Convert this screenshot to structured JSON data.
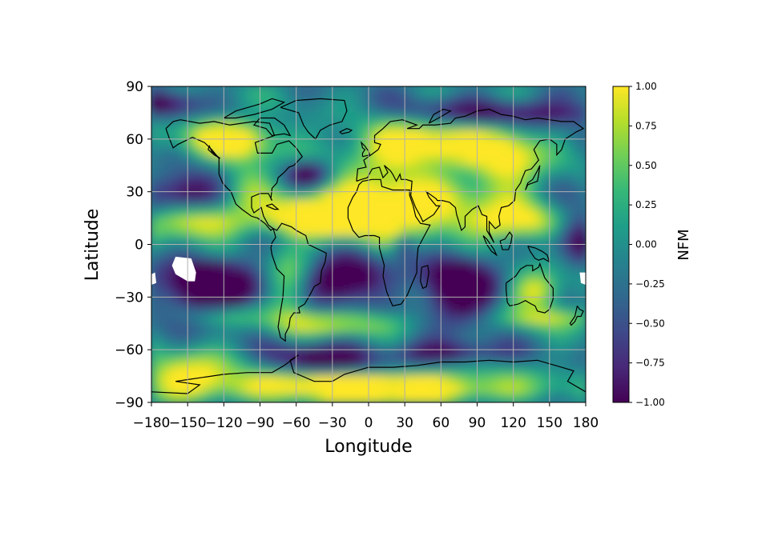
{
  "map": {
    "xlabel": "Longitude",
    "ylabel": "Latitude",
    "xlim": [
      -180,
      180
    ],
    "ylim": [
      -90,
      90
    ],
    "xticks": [
      -180,
      -150,
      -120,
      -90,
      -60,
      -30,
      0,
      30,
      60,
      90,
      120,
      150,
      180
    ],
    "yticks": [
      90,
      60,
      30,
      0,
      -30,
      -60,
      -90
    ],
    "xtick_labels": [
      "−180",
      "−150",
      "−120",
      "−90",
      "−60",
      "−30",
      "0",
      "30",
      "60",
      "90",
      "120",
      "150",
      "180"
    ],
    "ytick_labels": [
      "90",
      "60",
      "30",
      "0",
      "−30",
      "−60",
      "−90"
    ],
    "grid": true,
    "grid_color": "#b0b0b0",
    "coastlines": true,
    "colormap": "viridis",
    "missing_data_color": "#ffffff"
  },
  "colorbar": {
    "label": "NFM",
    "range": [
      -1.0,
      1.0
    ],
    "ticks": [
      1.0,
      0.75,
      0.5,
      0.25,
      0.0,
      -0.25,
      -0.5,
      -0.75,
      -1.0
    ],
    "tick_labels": [
      "1.00",
      "0.75",
      "0.50",
      "0.25",
      "0.00",
      "−0.25",
      "−0.50",
      "−0.75",
      "−1.00"
    ],
    "stops": [
      "#440154",
      "#482878",
      "#3e4989",
      "#31688e",
      "#26828e",
      "#1f9e89",
      "#35b779",
      "#6ece58",
      "#b5de2b",
      "#fde725"
    ]
  }
}
